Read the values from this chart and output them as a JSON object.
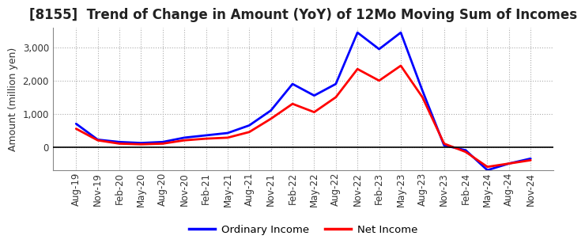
{
  "title": "[8155]  Trend of Change in Amount (YoY) of 12Mo Moving Sum of Incomes",
  "ylabel": "Amount (million yen)",
  "x_labels": [
    "Aug-19",
    "Nov-19",
    "Feb-20",
    "May-20",
    "Aug-20",
    "Nov-20",
    "Feb-21",
    "May-21",
    "Aug-21",
    "Nov-21",
    "Feb-22",
    "May-22",
    "Aug-22",
    "Nov-22",
    "Feb-23",
    "May-23",
    "Aug-23",
    "Nov-23",
    "Feb-24",
    "May-24",
    "Aug-24",
    "Nov-24"
  ],
  "ordinary_income": [
    700,
    220,
    150,
    120,
    150,
    280,
    350,
    420,
    650,
    1100,
    1900,
    1550,
    1900,
    3450,
    2950,
    3450,
    1700,
    50,
    -100,
    -700,
    -500,
    -350
  ],
  "net_income": [
    550,
    200,
    100,
    80,
    100,
    200,
    250,
    280,
    450,
    850,
    1300,
    1050,
    1500,
    2350,
    2000,
    2450,
    1500,
    100,
    -150,
    -600,
    -500,
    -400
  ],
  "ordinary_income_color": "#0000FF",
  "net_income_color": "#FF0000",
  "ylim": [
    -700,
    3600
  ],
  "ytick_positions": [
    0,
    1000,
    2000,
    3000
  ],
  "ytick_labels": [
    "0",
    "1,000",
    "2,000",
    "3,000"
  ],
  "background_color": "#FFFFFF",
  "grid_color": "#AAAAAA",
  "line_width": 2.0,
  "title_fontsize": 12,
  "axis_fontsize": 9,
  "tick_fontsize": 8.5
}
